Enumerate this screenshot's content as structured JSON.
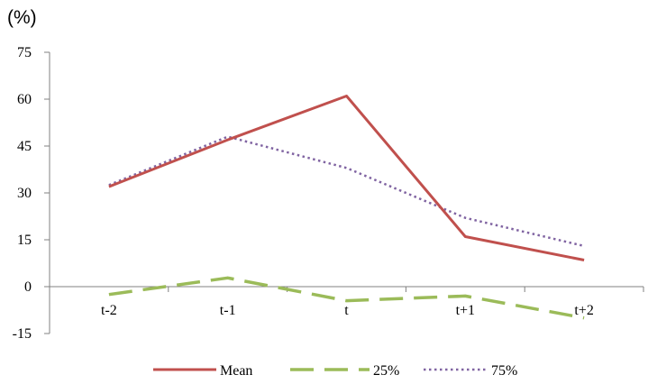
{
  "chart_data": {
    "type": "line",
    "y_unit": "(%)",
    "categories": [
      "t-2",
      "t-1",
      "t",
      "t+1",
      "t+2"
    ],
    "yticks": [
      75,
      60,
      45,
      30,
      15,
      0,
      -15
    ],
    "ylim": [
      -15,
      75
    ],
    "grid": false,
    "legend_position": "bottom",
    "series": [
      {
        "name": "Mean",
        "values": [
          32,
          47,
          61,
          16,
          8.5
        ],
        "color": "#c0504d",
        "style": "solid"
      },
      {
        "name": "25%",
        "values": [
          -2.5,
          2.8,
          -4.5,
          -3,
          -10
        ],
        "color": "#9bbb59",
        "style": "dashed"
      },
      {
        "name": "75%",
        "values": [
          32.5,
          48,
          38,
          22,
          13
        ],
        "color": "#8064a2",
        "style": "dotted"
      }
    ]
  }
}
